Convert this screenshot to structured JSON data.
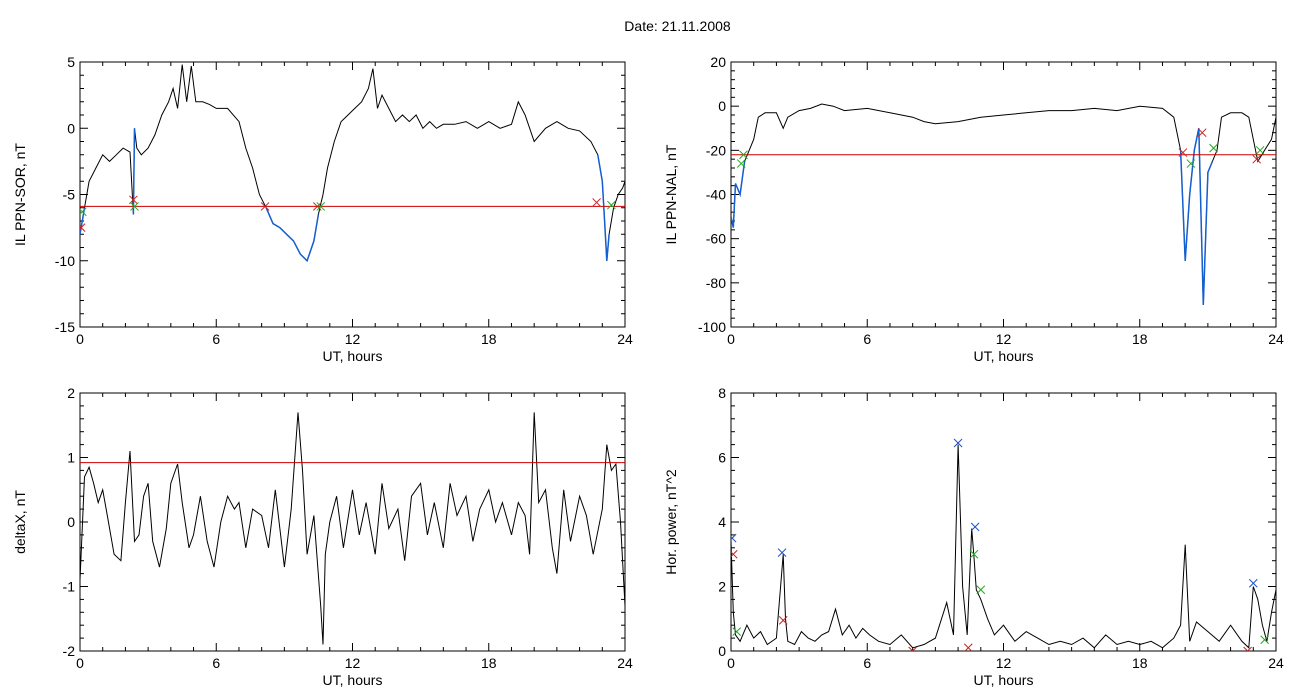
{
  "page": {
    "title": "Date:  21.11.2008"
  },
  "colors": {
    "trace": "#000000",
    "threshold": "#cc0000",
    "highlight": "#1560d0",
    "marker_red": "#cc2020",
    "marker_green": "#22aa22",
    "marker_blue": "#2050d0"
  },
  "chart_data": [
    {
      "id": "ppn-sor",
      "type": "line",
      "xlabel": "UT, hours",
      "ylabel": "IL PPN-SOR, nT",
      "xlim": [
        0,
        24
      ],
      "ylim": [
        -15,
        5
      ],
      "xticks": [
        0,
        6,
        12,
        18,
        24
      ],
      "yticks": [
        -15,
        -10,
        -5,
        0,
        5
      ],
      "threshold": -5.9,
      "series": [
        {
          "x": [
            0,
            0.1,
            0.2,
            0.4,
            0.7,
            1.0,
            1.3,
            1.6,
            1.9,
            2.2,
            2.35,
            2.4,
            2.5,
            2.7,
            3.0,
            3.3,
            3.6,
            3.9,
            4.1,
            4.3,
            4.5,
            4.7,
            4.9,
            5.1,
            5.4,
            5.7,
            6.0,
            6.5,
            7.0,
            7.3,
            7.6,
            7.9,
            8.2,
            8.5,
            8.8,
            9.1,
            9.4,
            9.7,
            10.0,
            10.3,
            10.5,
            10.7,
            10.9,
            11.2,
            11.5,
            11.8,
            12.1,
            12.4,
            12.7,
            12.9,
            13.1,
            13.3,
            13.6,
            13.9,
            14.2,
            14.5,
            14.8,
            15.1,
            15.4,
            15.7,
            16.0,
            16.5,
            17.0,
            17.5,
            18.0,
            18.5,
            19.0,
            19.3,
            19.6,
            20.0,
            20.5,
            21.0,
            21.5,
            22.0,
            22.5,
            22.8,
            23.0,
            23.1,
            23.2,
            23.3,
            23.5,
            23.7,
            23.9,
            24.0
          ],
          "y": [
            -8,
            -7,
            -6,
            -4,
            -3,
            -2,
            -2.5,
            -2,
            -1.5,
            -1.8,
            -6.5,
            0,
            -1.5,
            -2,
            -1.5,
            -0.5,
            1,
            2,
            3,
            1.5,
            4.8,
            2,
            4.7,
            2,
            2,
            1.8,
            1.5,
            1.5,
            0.5,
            -1.5,
            -3,
            -5,
            -6,
            -7.2,
            -7.5,
            -8,
            -8.5,
            -9.5,
            -10,
            -8.5,
            -6.5,
            -5,
            -3,
            -1,
            0.5,
            1,
            1.5,
            2,
            3,
            4.5,
            1.5,
            2.5,
            1.5,
            0.5,
            1,
            0.5,
            1,
            0,
            0.5,
            0,
            0.3,
            0.3,
            0.5,
            0,
            0.5,
            0,
            0.3,
            2,
            1,
            -1,
            0,
            0.5,
            0,
            -0.2,
            -1,
            -2,
            -4,
            -7,
            -10,
            -8,
            -6,
            -5,
            -4.5,
            -4
          ]
        }
      ],
      "markers": [
        {
          "x": 0.05,
          "y": -7.5,
          "color": "red"
        },
        {
          "x": 0.1,
          "y": -6.3,
          "color": "green"
        },
        {
          "x": 2.35,
          "y": -5.4,
          "color": "red"
        },
        {
          "x": 2.4,
          "y": -5.9,
          "color": "green"
        },
        {
          "x": 8.15,
          "y": -5.9,
          "color": "red"
        },
        {
          "x": 10.45,
          "y": -5.9,
          "color": "red"
        },
        {
          "x": 10.6,
          "y": -5.9,
          "color": "green"
        },
        {
          "x": 22.75,
          "y": -5.6,
          "color": "red"
        },
        {
          "x": 23.4,
          "y": -5.8,
          "color": "green"
        }
      ],
      "highlight_ranges": [
        [
          0,
          0.2
        ],
        [
          2.3,
          2.45
        ],
        [
          8.1,
          10.5
        ],
        [
          22.8,
          23.4
        ]
      ]
    },
    {
      "id": "ppn-nal",
      "type": "line",
      "xlabel": "UT, hours",
      "ylabel": "IL PPN-NAL, nT",
      "xlim": [
        0,
        24
      ],
      "ylim": [
        -100,
        20
      ],
      "xticks": [
        0,
        6,
        12,
        18,
        24
      ],
      "yticks": [
        -100,
        -80,
        -60,
        -40,
        -20,
        0,
        20
      ],
      "threshold": -22,
      "series": [
        {
          "x": [
            0,
            0.1,
            0.2,
            0.4,
            0.6,
            0.8,
            1.0,
            1.2,
            1.5,
            2.0,
            2.3,
            2.5,
            3.0,
            3.5,
            4.0,
            4.5,
            5.0,
            6.0,
            7.0,
            8.0,
            8.5,
            9.0,
            10.0,
            11.0,
            12.0,
            13.0,
            14.0,
            15.0,
            16.0,
            17.0,
            18.0,
            19.0,
            19.5,
            19.8,
            20.0,
            20.2,
            20.4,
            20.6,
            20.8,
            21.0,
            21.2,
            21.4,
            21.6,
            22.0,
            22.5,
            22.8,
            23.0,
            23.2,
            23.5,
            23.8,
            24.0
          ],
          "y": [
            -50,
            -55,
            -35,
            -40,
            -25,
            -20,
            -15,
            -5,
            -3,
            -3,
            -10,
            -5,
            -2,
            -1,
            1,
            0,
            -2,
            -1,
            -3,
            -5,
            -7,
            -8,
            -7,
            -5,
            -4,
            -3,
            -2,
            -2,
            -1,
            -2,
            0,
            -1,
            -5,
            -20,
            -70,
            -40,
            -20,
            -10,
            -90,
            -30,
            -25,
            -20,
            -5,
            -3,
            -3,
            -5,
            -15,
            -25,
            -20,
            -15,
            -5
          ]
        }
      ],
      "markers": [
        {
          "x": 0.45,
          "y": -26,
          "color": "green"
        },
        {
          "x": 0.55,
          "y": -22,
          "color": "green"
        },
        {
          "x": 19.9,
          "y": -21,
          "color": "red"
        },
        {
          "x": 20.25,
          "y": -26,
          "color": "green"
        },
        {
          "x": 20.75,
          "y": -12,
          "color": "red"
        },
        {
          "x": 21.25,
          "y": -19,
          "color": "green"
        },
        {
          "x": 23.15,
          "y": -24,
          "color": "red"
        },
        {
          "x": 23.3,
          "y": -20,
          "color": "green"
        }
      ],
      "highlight_ranges": [
        [
          0,
          0.6
        ],
        [
          19.8,
          21.3
        ],
        [
          23.1,
          23.4
        ]
      ]
    },
    {
      "id": "deltax",
      "type": "line",
      "xlabel": "UT, hours",
      "ylabel": "deltaX, nT",
      "xlim": [
        0,
        24
      ],
      "ylim": [
        -2,
        2
      ],
      "xticks": [
        0,
        6,
        12,
        18,
        24
      ],
      "yticks": [
        -2,
        -1,
        0,
        1,
        2
      ],
      "threshold": 0.92,
      "series": [
        {
          "x": [
            0,
            0.2,
            0.4,
            0.6,
            0.8,
            1.0,
            1.2,
            1.5,
            1.8,
            2.0,
            2.2,
            2.4,
            2.6,
            2.8,
            3.0,
            3.2,
            3.5,
            3.8,
            4.0,
            4.3,
            4.5,
            4.8,
            5.0,
            5.3,
            5.6,
            5.9,
            6.2,
            6.5,
            6.8,
            7.0,
            7.3,
            7.6,
            8.0,
            8.3,
            8.6,
            9.0,
            9.3,
            9.6,
            9.8,
            10.0,
            10.3,
            10.6,
            10.7,
            10.8,
            11.0,
            11.3,
            11.6,
            12.0,
            12.3,
            12.6,
            13.0,
            13.3,
            13.6,
            14.0,
            14.3,
            14.6,
            15.0,
            15.3,
            15.6,
            16.0,
            16.3,
            16.6,
            17.0,
            17.3,
            17.6,
            18.0,
            18.3,
            18.6,
            19.0,
            19.3,
            19.6,
            19.8,
            20.0,
            20.2,
            20.5,
            20.8,
            21.0,
            21.3,
            21.6,
            22.0,
            22.3,
            22.6,
            23.0,
            23.2,
            23.4,
            23.6,
            23.8,
            24.0
          ],
          "y": [
            -0.9,
            0.7,
            0.85,
            0.6,
            0.3,
            0.5,
            0.1,
            -0.5,
            -0.6,
            0.3,
            1.1,
            -0.3,
            -0.2,
            0.4,
            0.6,
            -0.3,
            -0.7,
            -0.1,
            0.6,
            0.9,
            0.3,
            -0.4,
            -0.2,
            0.4,
            -0.3,
            -0.7,
            0,
            0.4,
            0.2,
            0.3,
            -0.4,
            0.2,
            0.1,
            -0.4,
            0.5,
            -0.7,
            0.2,
            1.7,
            0.8,
            -0.5,
            0.1,
            -1.3,
            -1.9,
            -0.5,
            0,
            0.4,
            -0.4,
            0.5,
            -0.2,
            0.3,
            -0.5,
            0.6,
            -0.1,
            0.2,
            -0.6,
            0.4,
            0.6,
            -0.2,
            0.3,
            -0.4,
            0.6,
            0.1,
            0.4,
            -0.3,
            0.2,
            0.5,
            0,
            0.3,
            -0.2,
            0.3,
            0.1,
            -0.5,
            1.7,
            0.3,
            0.5,
            -0.4,
            -0.8,
            0.5,
            -0.3,
            0.4,
            0.1,
            -0.5,
            0.2,
            1.2,
            0.8,
            0.9,
            0,
            -1.3
          ]
        }
      ],
      "markers": [],
      "highlight_ranges": []
    },
    {
      "id": "hor-power",
      "type": "line",
      "xlabel": "UT, hours",
      "ylabel": "Hor. power, nT^2",
      "xlim": [
        0,
        24
      ],
      "ylim": [
        0,
        8
      ],
      "xticks": [
        0,
        6,
        12,
        18,
        24
      ],
      "yticks": [
        0,
        2,
        4,
        6,
        8
      ],
      "threshold": null,
      "series": [
        {
          "x": [
            0,
            0.1,
            0.2,
            0.4,
            0.7,
            1.0,
            1.3,
            1.6,
            2.0,
            2.3,
            2.4,
            2.5,
            2.8,
            3.1,
            3.4,
            3.7,
            4.0,
            4.3,
            4.6,
            4.9,
            5.2,
            5.5,
            5.8,
            6.1,
            6.5,
            7.0,
            7.5,
            8.0,
            8.5,
            9.0,
            9.5,
            9.8,
            10.0,
            10.2,
            10.4,
            10.6,
            10.7,
            10.8,
            11.0,
            11.3,
            11.6,
            12.0,
            12.5,
            13.0,
            13.5,
            14.0,
            14.5,
            15.0,
            15.5,
            16.0,
            16.5,
            17.0,
            17.5,
            18.0,
            18.5,
            19.0,
            19.5,
            19.8,
            20.0,
            20.2,
            20.5,
            21.0,
            21.5,
            22.0,
            22.5,
            22.8,
            23.0,
            23.2,
            23.4,
            23.6,
            23.8,
            24.0
          ],
          "y": [
            3.4,
            1.2,
            0.5,
            0.3,
            0.8,
            0.4,
            0.6,
            0.2,
            0.4,
            3.0,
            1.0,
            0.3,
            0.2,
            0.6,
            0.4,
            0.3,
            0.5,
            0.6,
            1.3,
            0.5,
            0.8,
            0.4,
            0.7,
            0.5,
            0.3,
            0.2,
            0.5,
            0.1,
            0.2,
            0.4,
            1.5,
            0.5,
            6.4,
            2.0,
            0.5,
            3.8,
            2.9,
            1.9,
            1.6,
            1.0,
            0.5,
            0.8,
            0.3,
            0.6,
            0.4,
            0.2,
            0.3,
            0.2,
            0.4,
            0.1,
            0.5,
            0.2,
            0.3,
            0.2,
            0.3,
            0.1,
            0.4,
            0.8,
            3.3,
            0.3,
            0.9,
            0.6,
            0.3,
            0.8,
            0.3,
            0.1,
            2.0,
            1.6,
            0.8,
            0.3,
            1.2,
            1.9
          ]
        }
      ],
      "markers": [
        {
          "x": 0.05,
          "y": 3.5,
          "color": "blue"
        },
        {
          "x": 0.1,
          "y": 3.0,
          "color": "red"
        },
        {
          "x": 0.25,
          "y": 0.6,
          "color": "green"
        },
        {
          "x": 2.25,
          "y": 3.05,
          "color": "blue"
        },
        {
          "x": 2.3,
          "y": 0.95,
          "color": "red"
        },
        {
          "x": 8.0,
          "y": 0.0,
          "color": "red"
        },
        {
          "x": 10.0,
          "y": 6.45,
          "color": "blue"
        },
        {
          "x": 10.45,
          "y": 0.1,
          "color": "red"
        },
        {
          "x": 10.75,
          "y": 3.85,
          "color": "blue"
        },
        {
          "x": 10.7,
          "y": 3.0,
          "color": "green"
        },
        {
          "x": 11.0,
          "y": 1.9,
          "color": "green"
        },
        {
          "x": 22.75,
          "y": 0.0,
          "color": "red"
        },
        {
          "x": 23.0,
          "y": 2.1,
          "color": "blue"
        },
        {
          "x": 23.5,
          "y": 0.35,
          "color": "green"
        }
      ],
      "highlight_ranges": []
    }
  ]
}
